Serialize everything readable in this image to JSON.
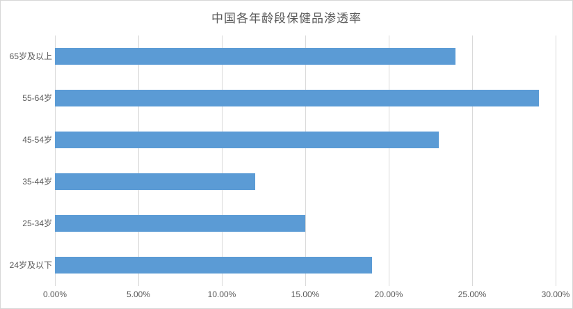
{
  "chart_data": {
    "type": "bar",
    "orientation": "horizontal",
    "title": "中国各年龄段保健品渗透率",
    "categories": [
      "65岁及以上",
      "55-64岁",
      "45-54岁",
      "35-44岁",
      "25-34岁",
      "24岁及以下"
    ],
    "values": [
      24,
      29,
      23,
      12,
      15,
      19
    ],
    "value_unit": "%",
    "xlabel": "",
    "ylabel": "",
    "xlim": [
      0,
      30
    ],
    "x_tick_values": [
      0,
      5,
      10,
      15,
      20,
      25,
      30
    ],
    "x_tick_labels": [
      "0.00%",
      "5.00%",
      "10.00%",
      "15.00%",
      "20.00%",
      "25.00%",
      "30.00%"
    ],
    "grid": "vertical-only",
    "legend": "none",
    "data_labels": "none",
    "bar_color": "#5b9bd5",
    "gridline_color": "#d9d9d9",
    "text_color": "#595959",
    "frame_border_color": "#d7d7d7",
    "background": "#ffffff"
  }
}
